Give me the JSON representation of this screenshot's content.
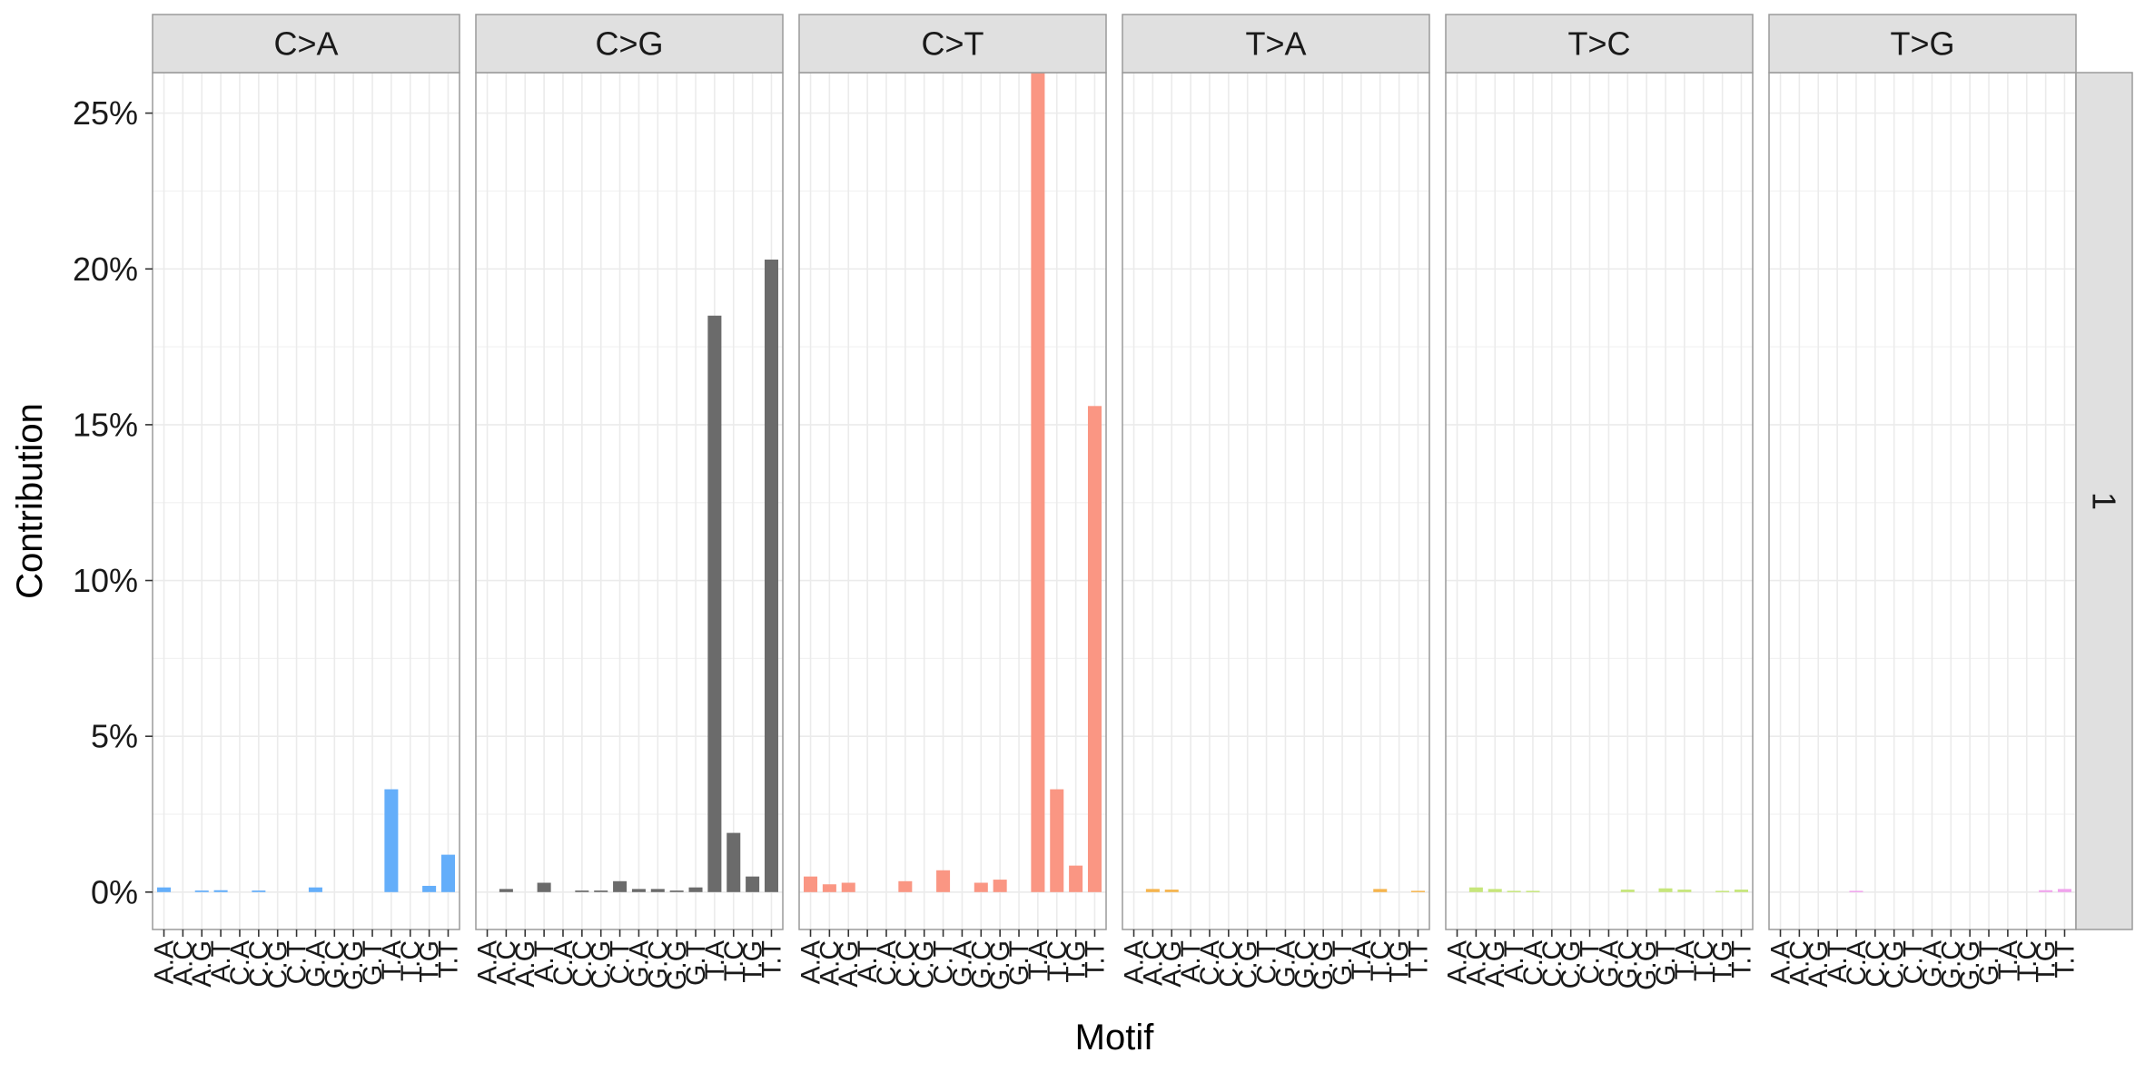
{
  "chart_data": {
    "type": "bar",
    "xlabel": "Motif",
    "ylabel": "Contribution",
    "ylim": [
      -0.012,
      0.263
    ],
    "yticks": [
      0,
      0.05,
      0.1,
      0.15,
      0.2,
      0.25
    ],
    "ytick_labels": [
      "0%",
      "5%",
      "10%",
      "15%",
      "20%",
      "25%"
    ],
    "grid": true,
    "row_strip": "1",
    "categories": [
      "A.A",
      "A.C",
      "A.G",
      "A.T",
      "C.A",
      "C.C",
      "C.G",
      "C.T",
      "G.A",
      "G.C",
      "G.G",
      "G.T",
      "T.A",
      "T.C",
      "T.G",
      "T.T"
    ],
    "panels": [
      {
        "name": "C>A",
        "color": "#64aefa",
        "values": [
          0.0015,
          0,
          0.0005,
          0.0006,
          0,
          0.0005,
          0,
          0,
          0.0015,
          0,
          0,
          0,
          0.033,
          0,
          0.002,
          0.012
        ]
      },
      {
        "name": "C>G",
        "color": "#6b6b6b",
        "values": [
          0,
          0.001,
          0,
          0.003,
          0,
          0.0005,
          0.0005,
          0.0035,
          0.001,
          0.001,
          0.0005,
          0.0015,
          0.185,
          0.019,
          0.005,
          0.203
        ]
      },
      {
        "name": "C>T",
        "color": "#fa9683",
        "values": [
          0.005,
          0.0025,
          0.003,
          0,
          0,
          0.0035,
          0,
          0.007,
          0,
          0.003,
          0.004,
          0,
          0.263,
          0.033,
          0.0085,
          0.156
        ]
      },
      {
        "name": "T>A",
        "color": "#f5b44d",
        "values": [
          0,
          0.001,
          0.0008,
          0,
          0,
          0,
          0,
          0,
          0,
          0,
          0,
          0,
          0,
          0.001,
          0,
          0.0004
        ]
      },
      {
        "name": "T>C",
        "color": "#c6e67a",
        "values": [
          0,
          0.0015,
          0.001,
          0.0004,
          0.0004,
          0,
          0,
          0,
          0,
          0.0008,
          0,
          0.0012,
          0.0008,
          0,
          0.0004,
          0.0008
        ]
      },
      {
        "name": "T>G",
        "color": "#f0a3ed",
        "values": [
          0,
          0,
          0,
          0,
          0.0004,
          0,
          0,
          0,
          0,
          0,
          0,
          0,
          0,
          0,
          0.0006,
          0.001
        ]
      }
    ]
  }
}
